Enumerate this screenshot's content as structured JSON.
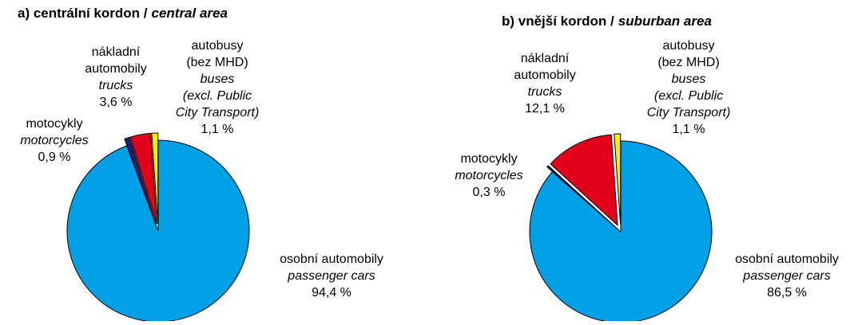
{
  "chart_data": [
    {
      "type": "pie",
      "title": "a) centrální kordon /",
      "title_en": "central area",
      "categories": [
        [
          "osobní automobily"
        ],
        [
          "motocykly"
        ],
        [
          "nákladní",
          "automobily"
        ],
        [
          "autobusy",
          "(bez MHD)"
        ]
      ],
      "categories_en": [
        [
          "passenger cars"
        ],
        [
          "motorcycles"
        ],
        [
          "trucks"
        ],
        [
          "buses",
          "(excl. Public",
          "City Transport)"
        ]
      ],
      "values": [
        94.4,
        0.9,
        3.6,
        1.1
      ],
      "value_labels": [
        "94,4 %",
        "0,9 %",
        "3,6 %",
        "1,1 %"
      ],
      "colors": [
        "#00a0e6",
        "#2b1a70",
        "#e2001a",
        "#ffed00"
      ]
    },
    {
      "type": "pie",
      "title": "b) vnější kordon /",
      "title_en": "suburban area",
      "categories": [
        [
          "osobní automobily"
        ],
        [
          "motocykly"
        ],
        [
          "nákladní",
          "automobily"
        ],
        [
          "autobusy",
          "(bez MHD)"
        ]
      ],
      "categories_en": [
        [
          "passenger cars"
        ],
        [
          "motorcycles"
        ],
        [
          "trucks"
        ],
        [
          "buses",
          "(excl. Public",
          "City Transport)"
        ]
      ],
      "values": [
        86.5,
        0.3,
        12.1,
        1.1
      ],
      "value_labels": [
        "86,5 %",
        "0,3 %",
        "12,1 %",
        "1,1 %"
      ],
      "colors": [
        "#00a0e6",
        "#2b1a70",
        "#e2001a",
        "#ffed00"
      ]
    }
  ]
}
